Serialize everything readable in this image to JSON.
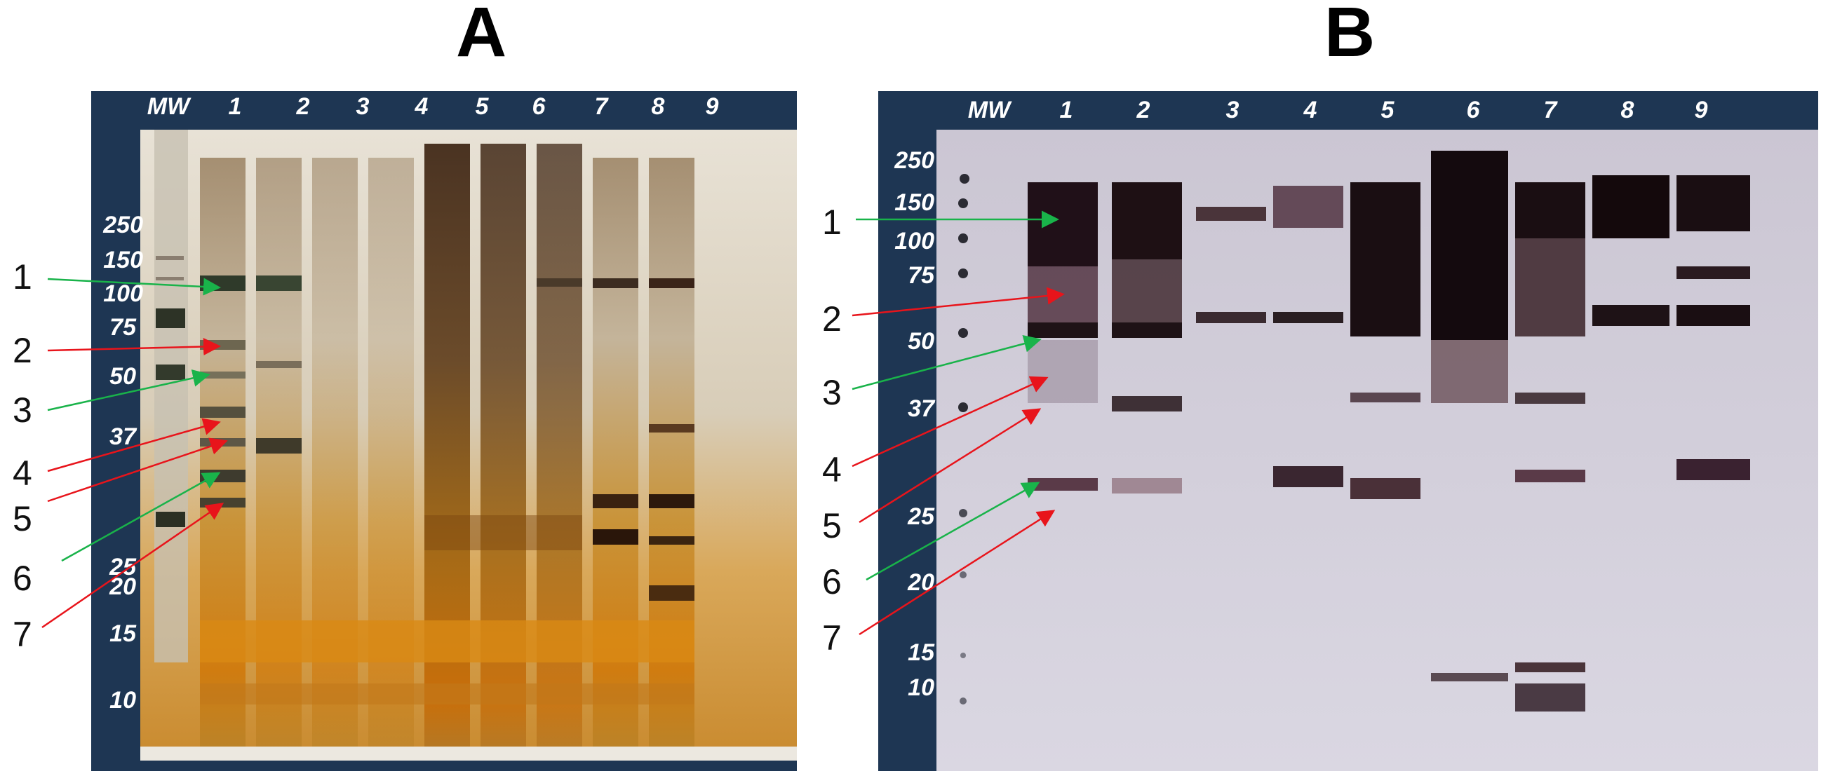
{
  "panel_a": {
    "letter": "A",
    "lane_labels": [
      "MW",
      "1",
      "2",
      "3",
      "4",
      "5",
      "6",
      "7",
      "8",
      "9"
    ],
    "mw_markers": [
      "250",
      "150",
      "100",
      "75",
      "50",
      "37",
      "25",
      "20",
      "15",
      "10"
    ],
    "band_numbers": [
      "1",
      "2",
      "3",
      "4",
      "5",
      "6",
      "7"
    ]
  },
  "panel_b": {
    "letter": "B",
    "lane_labels": [
      "MW",
      "1",
      "2",
      "3",
      "4",
      "5",
      "6",
      "7",
      "8",
      "9"
    ],
    "mw_markers": [
      "250",
      "150",
      "100",
      "75",
      "50",
      "37",
      "25",
      "20",
      "15",
      "10"
    ],
    "band_numbers": [
      "1",
      "2",
      "3",
      "4",
      "5",
      "6",
      "7"
    ]
  },
  "colors": {
    "frame": "#1e3653",
    "arrow_green": "#19b34a",
    "arrow_red": "#e8141b",
    "gel_a_background": "#d9cfc0",
    "gel_b_background": "#d6d3e0"
  }
}
